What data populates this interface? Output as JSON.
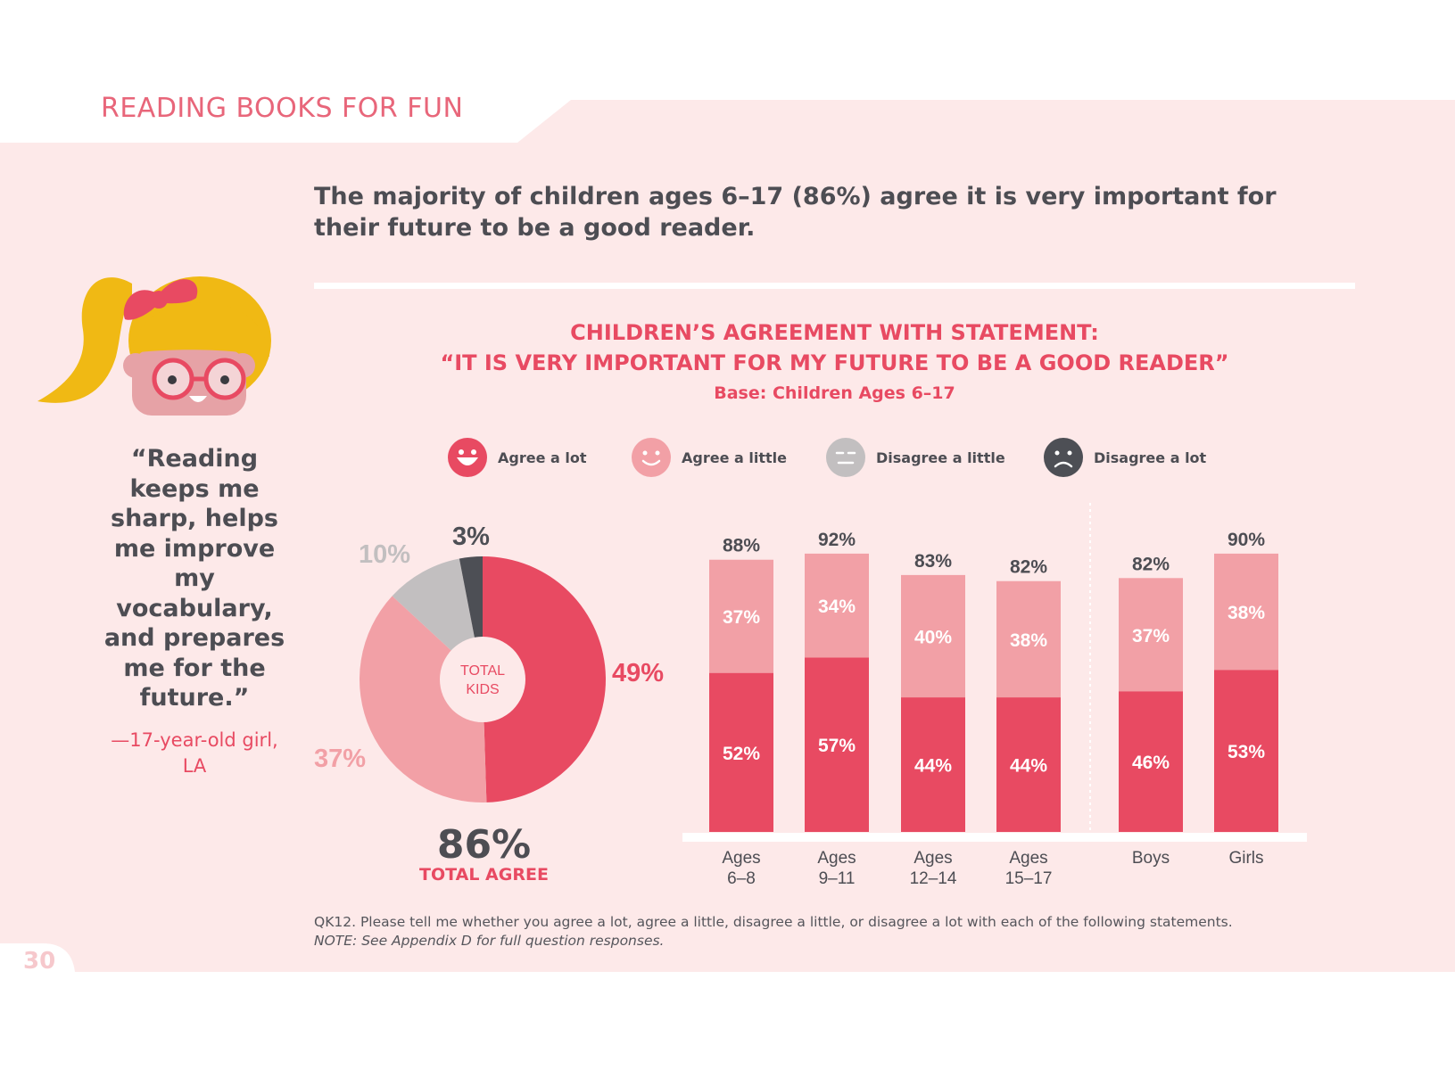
{
  "section_title": "READING BOOKS FOR FUN",
  "headline": "The majority of children ages 6–17 (86%) agree it is very important for their future to be a good reader.",
  "quote": {
    "text": "“Reading keeps me sharp, helps me improve my vocabulary, and prepares me for the future.”",
    "attribution": "—17-year-old girl, LA"
  },
  "legend": [
    {
      "label": "Agree a lot",
      "color": "#e84a62"
    },
    {
      "label": "Agree a little",
      "color": "#f2a0a6"
    },
    {
      "label": "Disagree a little",
      "color": "#c2bfc0"
    },
    {
      "label": "Disagree a lot",
      "color": "#4d4f55"
    }
  ],
  "colors": {
    "accent": "#e84a62",
    "light_pink": "#f2a0a6",
    "grey": "#c2bfc0",
    "dark": "#4d4f55",
    "panel": "#fde9e9"
  },
  "donut_center": {
    "line1": "TOTAL",
    "line2": "KIDS"
  },
  "total_agree": {
    "value": "86%",
    "label": "TOTAL AGREE"
  },
  "footnote": {
    "question": "QK12. Please tell me whether you agree a lot, agree a little, disagree a little, or disagree a lot with each of the following statements.",
    "note": "NOTE: See Appendix D for full question responses."
  },
  "page_number": "30",
  "chart_data": [
    {
      "type": "pie",
      "title": "CHILDREN’S AGREEMENT WITH STATEMENT:",
      "subtitle": "“IT IS VERY IMPORTANT FOR MY FUTURE TO BE A GOOD READER”",
      "base": "Base: Children Ages 6–17",
      "center_label": "TOTAL KIDS",
      "slices": [
        {
          "label": "Agree a lot",
          "value": 49,
          "display": "49%"
        },
        {
          "label": "Agree a little",
          "value": 37,
          "display": "37%"
        },
        {
          "label": "Disagree a little",
          "value": 10,
          "display": "10%"
        },
        {
          "label": "Disagree a lot",
          "value": 3,
          "display": "3%"
        }
      ]
    },
    {
      "type": "bar",
      "stacked": true,
      "categories": [
        [
          "Ages",
          "6–8"
        ],
        [
          "Ages",
          "9–11"
        ],
        [
          "Ages",
          "12–14"
        ],
        [
          "Ages",
          "15–17"
        ],
        [
          "Boys"
        ],
        [
          "Girls"
        ]
      ],
      "groups": [
        "age",
        "age",
        "age",
        "age",
        "gender",
        "gender"
      ],
      "series": [
        {
          "name": "Agree a lot",
          "values": [
            52,
            57,
            44,
            44,
            46,
            53
          ]
        },
        {
          "name": "Agree a little",
          "values": [
            37,
            34,
            40,
            38,
            37,
            38
          ]
        }
      ],
      "totals": [
        88,
        92,
        83,
        82,
        82,
        90
      ],
      "ylim": [
        0,
        100
      ]
    }
  ]
}
